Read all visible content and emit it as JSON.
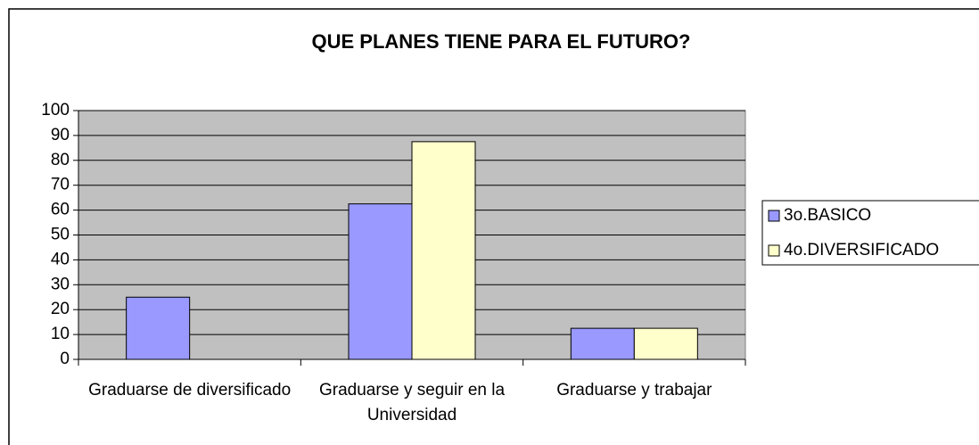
{
  "chart_data": {
    "type": "bar",
    "title": "QUE PLANES TIENE PARA EL FUTURO?",
    "categories": [
      "Graduarse de diversificado",
      "Graduarse y seguir en la Universidad",
      "Graduarse y trabajar"
    ],
    "series": [
      {
        "name": "3o.BASICO",
        "color": "#9999ff",
        "values": [
          25,
          62.5,
          12.5
        ]
      },
      {
        "name": "4o.DIVERSIFICADO",
        "color": "#ffffcc",
        "values": [
          0,
          87.5,
          12.5
        ]
      }
    ],
    "ylim": [
      0,
      100
    ],
    "yticks": [
      0,
      10,
      20,
      30,
      40,
      50,
      60,
      70,
      80,
      90,
      100
    ],
    "grid": true,
    "legend": "right"
  }
}
